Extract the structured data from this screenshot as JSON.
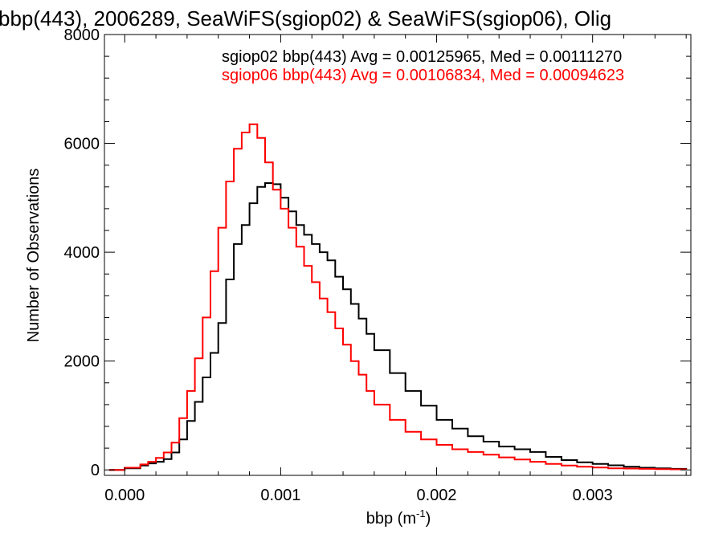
{
  "colors": {
    "background": "#ffffff",
    "axes": "#000000",
    "sgiop02": "#000000",
    "sgiop06": "#ff0000"
  },
  "chart_data": {
    "type": "line",
    "title": "bbp(443), 2006289, SeaWiFS(sgiop02) & SeaWiFS(sgiop06), Olig",
    "xlabel_main": "bbp (m",
    "xlabel_sup": "-1",
    "xlabel_close": ")",
    "ylabel": "Number of Observations",
    "xlim": [
      -0.00013,
      0.00363
    ],
    "ylim": [
      -100,
      8000
    ],
    "x_ticks": [
      0.0,
      0.001,
      0.002,
      0.003
    ],
    "x_tick_labels": [
      "0.000",
      "0.001",
      "0.002",
      "0.003"
    ],
    "y_ticks": [
      0,
      2000,
      4000,
      6000,
      8000
    ],
    "y_tick_labels": [
      "0",
      "2000",
      "4000",
      "6000",
      "8000"
    ],
    "legend_placement": "top-right",
    "annotations": [
      "sgiop02 bbp(443) Avg = 0.00125965, Med = 0.00111270",
      "sgiop06 bbp(443) Avg = 0.00106834, Med = 0.00094623"
    ],
    "grid": false,
    "series": [
      {
        "name": "sgiop02",
        "color": "#000000",
        "x": [
          -0.0001,
          0.0,
          0.0001,
          0.00015,
          0.0002,
          0.00025,
          0.0003,
          0.00035,
          0.0004,
          0.00045,
          0.0005,
          0.00055,
          0.0006,
          0.00065,
          0.0007,
          0.00075,
          0.0008,
          0.00085,
          0.0009,
          0.00095,
          0.001,
          0.00105,
          0.0011,
          0.00115,
          0.0012,
          0.00125,
          0.0013,
          0.00135,
          0.0014,
          0.00145,
          0.0015,
          0.00155,
          0.0016,
          0.0017,
          0.0018,
          0.0019,
          0.002,
          0.0021,
          0.0022,
          0.0023,
          0.0024,
          0.0025,
          0.0026,
          0.0027,
          0.0028,
          0.0029,
          0.003,
          0.0031,
          0.0032,
          0.0033,
          0.0034,
          0.0035,
          0.0036
        ],
        "y": [
          0,
          30,
          80,
          120,
          150,
          200,
          320,
          560,
          900,
          1250,
          1700,
          2150,
          2700,
          3500,
          4150,
          4500,
          4900,
          5200,
          5270,
          5250,
          5000,
          4750,
          4500,
          4320,
          4150,
          4000,
          3850,
          3550,
          3320,
          3050,
          2780,
          2500,
          2200,
          1780,
          1450,
          1180,
          920,
          760,
          620,
          520,
          430,
          380,
          330,
          240,
          180,
          140,
          110,
          85,
          60,
          40,
          30,
          20,
          15
        ]
      },
      {
        "name": "sgiop06",
        "color": "#ff0000",
        "x": [
          -0.0001,
          0.0,
          0.0001,
          0.00015,
          0.0002,
          0.00025,
          0.0003,
          0.00035,
          0.0004,
          0.00045,
          0.0005,
          0.00055,
          0.0006,
          0.00065,
          0.0007,
          0.00075,
          0.0008,
          0.00085,
          0.0009,
          0.00095,
          0.001,
          0.00105,
          0.0011,
          0.00115,
          0.0012,
          0.00125,
          0.0013,
          0.00135,
          0.0014,
          0.00145,
          0.0015,
          0.00155,
          0.0016,
          0.0017,
          0.0018,
          0.0019,
          0.002,
          0.0021,
          0.0022,
          0.0023,
          0.0024,
          0.0025,
          0.0026,
          0.0027,
          0.0028,
          0.0029,
          0.003,
          0.0031,
          0.0032,
          0.0033,
          0.0034,
          0.0035,
          0.0036
        ],
        "y": [
          0,
          40,
          100,
          150,
          220,
          320,
          500,
          950,
          1450,
          2050,
          2800,
          3650,
          4450,
          5300,
          5900,
          6200,
          6350,
          6100,
          5650,
          5150,
          4800,
          4450,
          4100,
          3750,
          3450,
          3150,
          2900,
          2600,
          2300,
          2000,
          1750,
          1450,
          1200,
          920,
          700,
          560,
          460,
          380,
          330,
          280,
          230,
          190,
          150,
          110,
          80,
          60,
          45,
          30,
          25,
          20,
          15,
          10,
          8
        ]
      }
    ]
  }
}
